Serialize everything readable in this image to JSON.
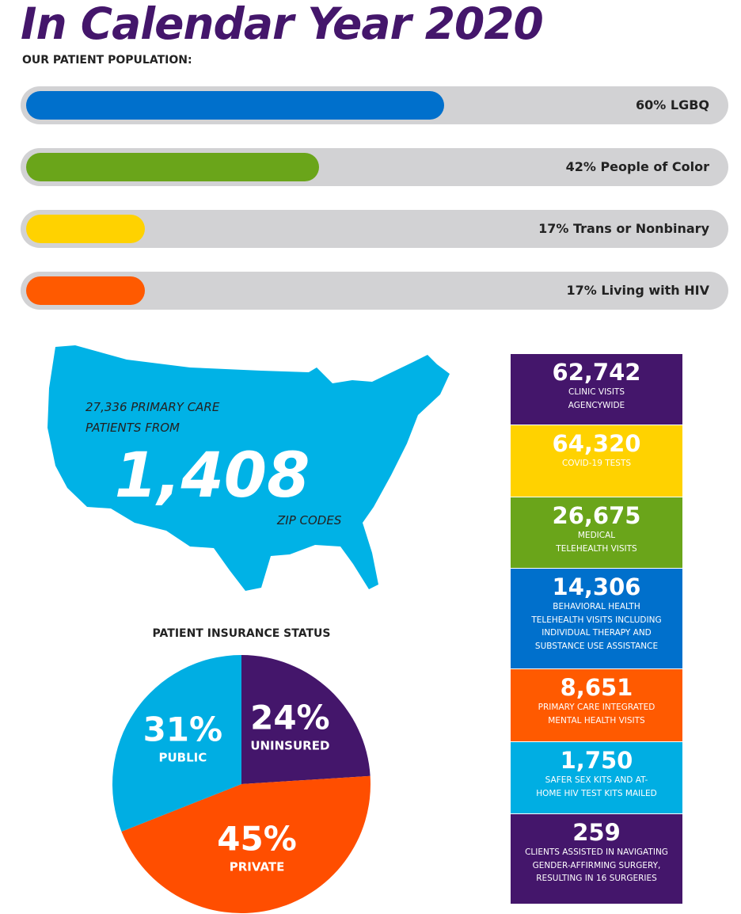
{
  "title": "In Calendar Year 2020",
  "population": {
    "heading": "OUR PATIENT POPULATION:",
    "bars": [
      {
        "value": 60,
        "label": "60% LGBQ",
        "color": "#0070cc"
      },
      {
        "value": 42,
        "label": "42% People of Color",
        "color": "#6aa51a"
      },
      {
        "value": 17,
        "label": "17% Trans or Nonbinary",
        "color": "#ffd200"
      },
      {
        "value": 17,
        "label": "17% Living with HIV",
        "color": "#ff5a00"
      }
    ]
  },
  "map": {
    "intro_lines": [
      "27,336 PRIMARY CARE",
      "PATIENTS FROM"
    ],
    "number": "1,408",
    "caption": "ZIP CODES"
  },
  "stats": [
    {
      "number": "62,742",
      "lines": [
        "CLINIC VISITS",
        "AGENCYWIDE"
      ],
      "color": "#44166b"
    },
    {
      "number": "64,320",
      "lines": [
        "COVID-19 TESTS"
      ],
      "color": "#ffd200"
    },
    {
      "number": "26,675",
      "lines": [
        "MEDICAL",
        "TELEHEALTH VISITS"
      ],
      "color": "#6aa51a"
    },
    {
      "number": "14,306",
      "lines": [
        "BEHAVIORAL HEALTH",
        "TELEHEALTH VISITS INCLUDING",
        "INDIVIDUAL THERAPY AND",
        "SUBSTANCE USE ASSISTANCE"
      ],
      "color": "#0070cc"
    },
    {
      "number": "8,651",
      "lines": [
        "PRIMARY CARE INTEGRATED",
        "MENTAL HEALTH VISITS"
      ],
      "color": "#ff5a00"
    },
    {
      "number": "1,750",
      "lines": [
        "SAFER SEX KITS AND AT-",
        "HOME HIV TEST KITS MAILED"
      ],
      "color": "#00aee3"
    },
    {
      "number": "259",
      "lines": [
        "CLIENTS ASSISTED IN NAVIGATING",
        "GENDER-AFFIRMING SURGERY,",
        "RESULTING IN 16 SURGERIES"
      ],
      "color": "#44166b"
    }
  ],
  "chart_data": {
    "type": "pie",
    "title": "PATIENT INSURANCE STATUS",
    "categories": [
      "UNINSURED",
      "PRIVATE",
      "PUBLIC"
    ],
    "values": [
      24,
      45,
      31
    ],
    "value_labels": [
      "24%",
      "45%",
      "31%"
    ],
    "colors": [
      "#44166b",
      "#ff4e00",
      "#00aee3"
    ]
  }
}
